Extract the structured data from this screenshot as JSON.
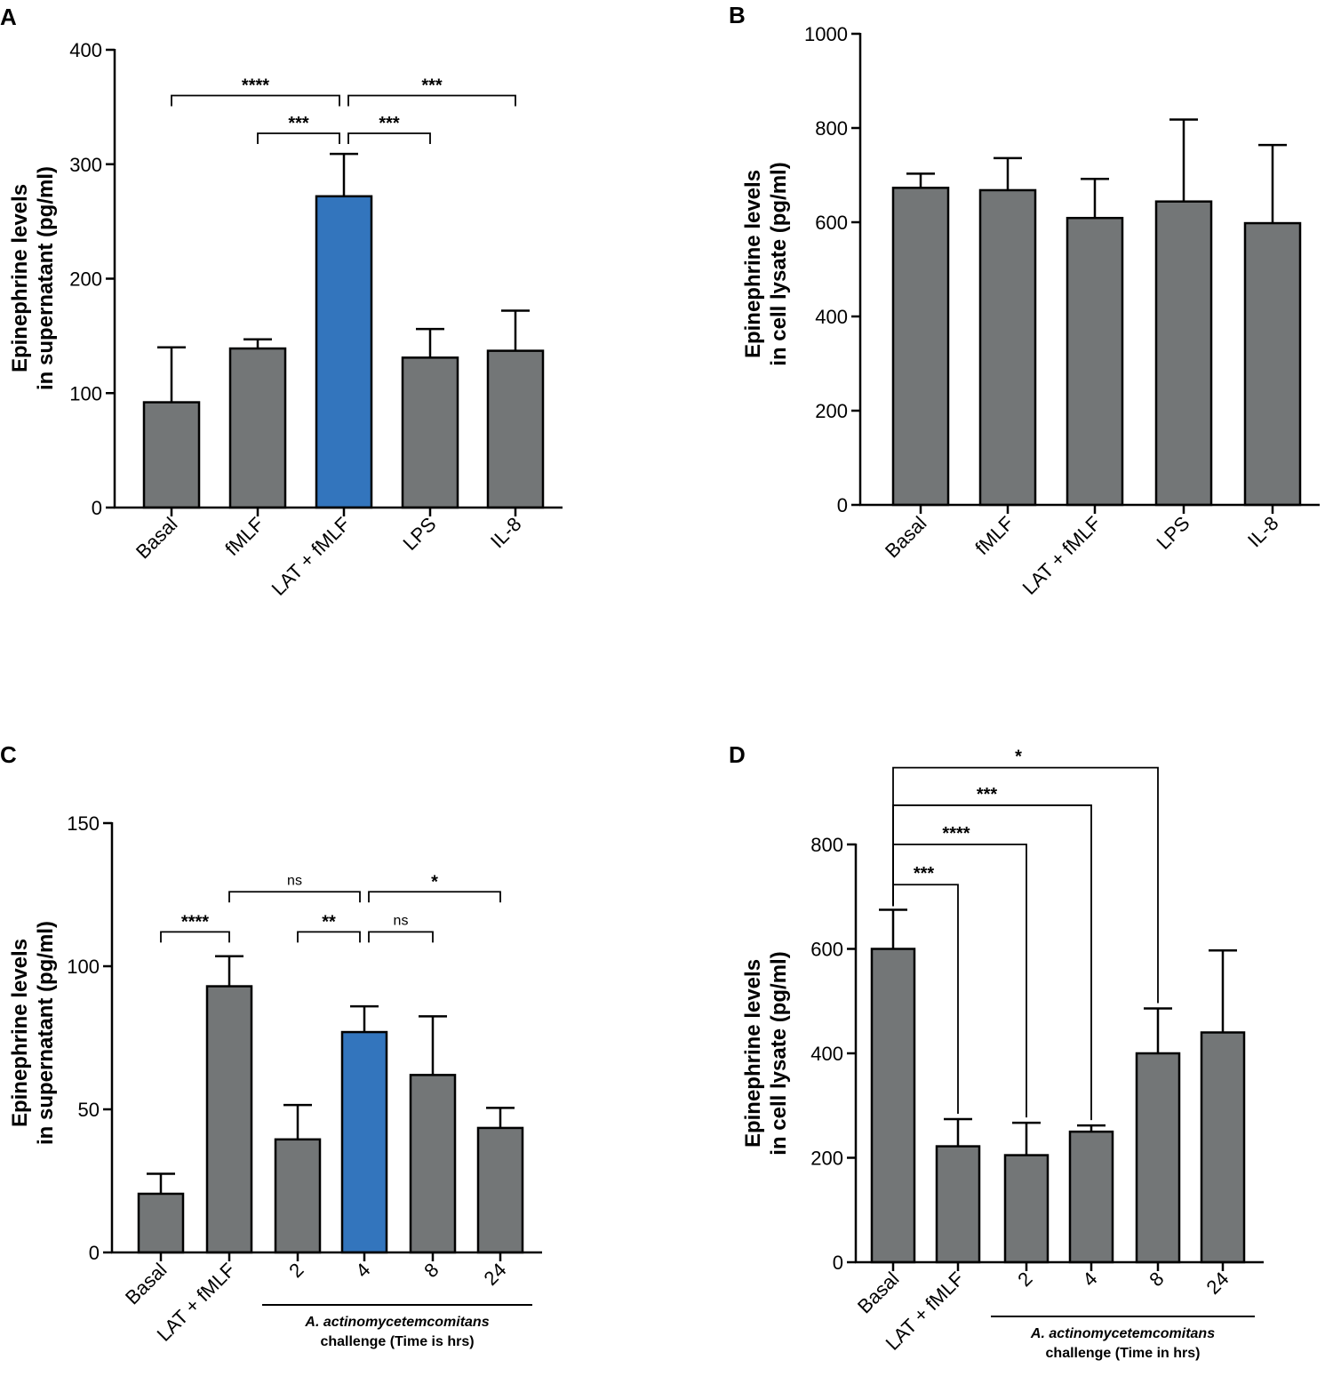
{
  "colors": {
    "bar_gray": "#737677",
    "bar_blue": "#3375bd",
    "axis": "#000000"
  },
  "chart_data": [
    {
      "panel": "A",
      "type": "bar",
      "ylabel_lines": [
        "Epinephrine levels",
        "in supernatant (pg/ml)"
      ],
      "xlabel": "",
      "ylim": [
        0,
        400
      ],
      "yticks": [
        0,
        100,
        200,
        300,
        400
      ],
      "categories": [
        "Basal",
        "fMLF",
        "LAT + fMLF",
        "LPS",
        "IL-8"
      ],
      "values": [
        92,
        139,
        272,
        131,
        137
      ],
      "errors": [
        48,
        8,
        37,
        25,
        35
      ],
      "highlight": [
        false,
        false,
        true,
        false,
        false
      ],
      "significance": [
        {
          "from": 0,
          "to": 2,
          "label": "****",
          "y": 360
        },
        {
          "from": 2,
          "to": 4,
          "label": "***",
          "y": 360
        },
        {
          "from": 1,
          "to": 2,
          "label": "***",
          "y": 327
        },
        {
          "from": 2,
          "to": 3,
          "label": "***",
          "y": 327
        }
      ]
    },
    {
      "panel": "B",
      "type": "bar",
      "ylabel_lines": [
        "Epinephrine levels",
        "in cell lysate (pg/ml)"
      ],
      "xlabel": "",
      "ylim": [
        0,
        1000
      ],
      "yticks": [
        0,
        200,
        400,
        600,
        800,
        1000
      ],
      "categories": [
        "Basal",
        "fMLF",
        "LAT + fMLF",
        "LPS",
        "IL-8"
      ],
      "values": [
        673,
        668,
        609,
        644,
        598
      ],
      "errors": [
        30,
        68,
        83,
        174,
        166
      ],
      "highlight": [
        false,
        false,
        false,
        false,
        false
      ],
      "significance": []
    },
    {
      "panel": "C",
      "type": "bar",
      "ylabel_lines": [
        "Epinephrine levels",
        "in supernatant (pg/ml)"
      ],
      "xlabel": "",
      "ylim": [
        0,
        150
      ],
      "yticks": [
        0,
        50,
        100,
        150
      ],
      "categories": [
        "Basal",
        "LAT + fMLF",
        "2",
        "4",
        "8",
        "24"
      ],
      "values": [
        20.5,
        93,
        39.5,
        77,
        62,
        43.5
      ],
      "errors": [
        7,
        10.5,
        12,
        9,
        20.5,
        7
      ],
      "highlight": [
        false,
        false,
        false,
        true,
        false,
        false
      ],
      "group_label_lines": [
        "A. actinomycetemcomitans",
        "challenge (Time is hrs)"
      ],
      "group_range": [
        2,
        5
      ],
      "significance": [
        {
          "from": 0,
          "to": 1,
          "label": "****",
          "y": 112
        },
        {
          "from": 1,
          "to": 3,
          "label": "ns",
          "y": 126
        },
        {
          "from": 3,
          "to": 5,
          "label": "*",
          "y": 126
        },
        {
          "from": 2,
          "to": 3,
          "label": "**",
          "y": 112
        },
        {
          "from": 3,
          "to": 4,
          "label": "ns",
          "y": 112
        }
      ]
    },
    {
      "panel": "D",
      "type": "bar",
      "ylabel_lines": [
        "Epinephrine levels",
        "in cell lysate (pg/ml)"
      ],
      "xlabel": "",
      "ylim": [
        0,
        800
      ],
      "yticks": [
        0,
        200,
        400,
        600,
        800
      ],
      "categories": [
        "Basal",
        "LAT + fMLF",
        "2",
        "4",
        "8",
        "24"
      ],
      "values": [
        600,
        222,
        205,
        250,
        400,
        440
      ],
      "errors": [
        75,
        52,
        62,
        12,
        86,
        157
      ],
      "highlight": [
        false,
        false,
        false,
        false,
        false,
        false
      ],
      "group_label_lines": [
        "A. actinomycetemcomitans",
        "challenge (Time in hrs)"
      ],
      "group_range": [
        2,
        5
      ],
      "significance_fanned": [
        {
          "from": 0,
          "to": 1,
          "label": "***",
          "y": 723
        },
        {
          "from": 0,
          "to": 2,
          "label": "****",
          "y": 800
        },
        {
          "from": 0,
          "to": 3,
          "label": "***",
          "y": 875
        },
        {
          "from": 0,
          "to": 4,
          "label": "*",
          "y": 947
        }
      ]
    }
  ]
}
